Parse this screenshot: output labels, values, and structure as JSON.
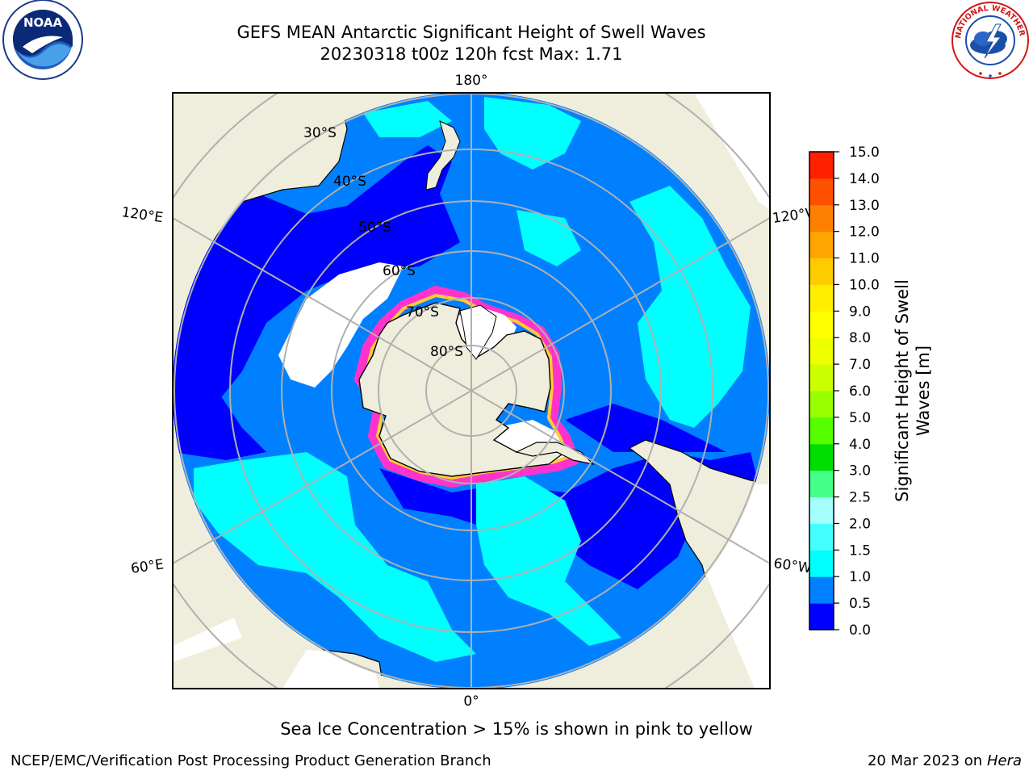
{
  "header": {
    "title_line1": "GEFS MEAN Antarctic Significant Height of Swell Waves",
    "title_line2": "20230318 t00z 120h fcst   Max: 1.71"
  },
  "logos": {
    "left": "noaa-logo",
    "left_text": "NOAA",
    "right": "nws-logo",
    "right_text": "NATIONAL WEATHER SERVICE"
  },
  "map": {
    "projection": "south-polar-stereographic",
    "latitude_labels": [
      "30°S",
      "40°S",
      "50°S",
      "60°S",
      "70°S",
      "80°S"
    ],
    "longitude_labels": {
      "top": "180°",
      "bottom": "0°",
      "upper_left": "120°E",
      "lower_left": "60°E",
      "upper_right": "120°W",
      "lower_right": "60°W"
    },
    "colors": {
      "land": "#efeedc",
      "ocean_dark": "#0000ff",
      "ocean_mid": "#0080ff",
      "ocean_light": "#00ffff",
      "ice_free_white": "#ffffff",
      "sea_ice_edge": "#ff33cc",
      "sea_ice_edge_2": "#ffcc33",
      "gridline": "#b0b0b0"
    }
  },
  "colorbar": {
    "label_line1": "Significant Height of Swell",
    "label_line2": "Waves [m]",
    "ticks": [
      "0.0",
      "0.5",
      "1.0",
      "1.5",
      "2.0",
      "2.5",
      "3.0",
      "4.0",
      "5.0",
      "6.0",
      "7.0",
      "8.0",
      "9.0",
      "10.0",
      "11.0",
      "12.0",
      "13.0",
      "14.0",
      "15.0"
    ],
    "colors": [
      "#0000ff",
      "#0080ff",
      "#00ffff",
      "#44ffff",
      "#a5ffff",
      "#44ff88",
      "#00dd00",
      "#55ff00",
      "#99ff00",
      "#ccff00",
      "#eeff00",
      "#ffff00",
      "#ffee00",
      "#ffcc00",
      "#ffa500",
      "#ff8000",
      "#ff5000",
      "#ff2000"
    ]
  },
  "captions": {
    "ice_note": "Sea Ice Concentration > 15% is shown in pink to yellow"
  },
  "footer": {
    "left": "NCEP/EMC/Verification Post Processing Product Generation Branch",
    "right_date": "20 Mar 2023 on",
    "right_host": "Hera"
  }
}
